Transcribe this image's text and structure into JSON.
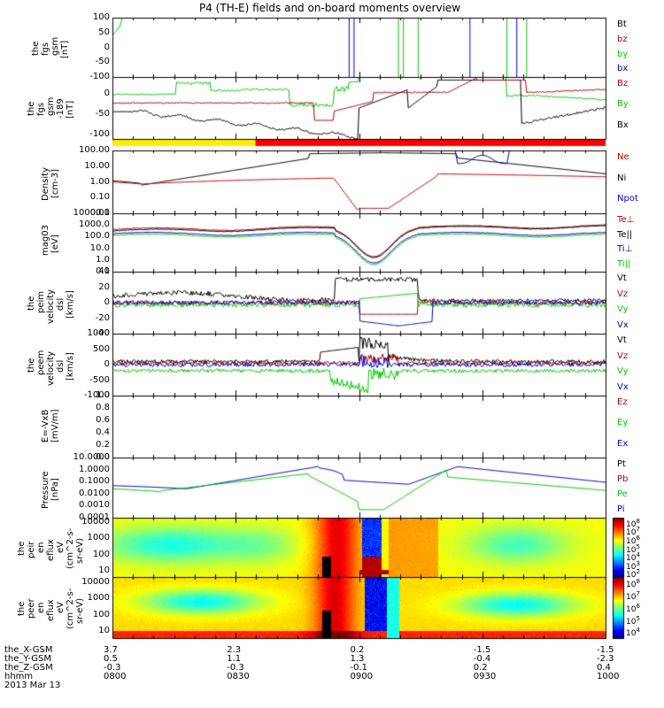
{
  "chart_data": {
    "type": "line",
    "title": "P4 (TH-E) fields and on-board moments overview",
    "date_label": "2013 Mar 13",
    "x_ticks_hhmm": [
      "0800",
      "0830",
      "0900",
      "0930",
      "1000"
    ],
    "x_range": [
      "0800",
      "1000"
    ],
    "ephemeris": {
      "labels": [
        "the_X-GSM",
        "the_Y-GSM",
        "the_Z-GSM",
        "hhmm"
      ],
      "X": [
        "3.7",
        "2.3",
        "0.2",
        "-1.5",
        "-1.5"
      ],
      "Y": [
        "0.5",
        "1.1",
        "1.3",
        "-0.4",
        "-2.3"
      ],
      "Z": [
        "-0.3",
        "-0.3",
        "-0.1",
        "0.2",
        "0.4"
      ]
    },
    "panels": [
      {
        "id": "fgs",
        "ylabel": [
          "the",
          "fgs",
          "gsm",
          "[nT]"
        ],
        "ylim": [
          -100,
          100
        ],
        "y_ticks": [
          "100",
          "50",
          "0",
          "-50",
          "-100"
        ],
        "legend": [
          {
            "name": "Bt",
            "color": "#000000"
          },
          {
            "name": "bz",
            "color": "#b00000"
          },
          {
            "name": "by",
            "color": "#00cc00"
          },
          {
            "name": "bx",
            "color": "#0000cc"
          }
        ]
      },
      {
        "id": "fgs2",
        "ylabel": [
          "the",
          "fgs",
          "gsm",
          "-189",
          "[nT]"
        ],
        "ylim": [
          -125,
          25
        ],
        "y_ticks": [
          "0",
          "-50",
          "-100"
        ],
        "legend": [
          {
            "name": "Bz",
            "color": "#b00000"
          },
          {
            "name": "By",
            "color": "#00cc00"
          },
          {
            "name": "Bx",
            "color": "#000000"
          }
        ]
      },
      {
        "id": "density",
        "ylabel": [
          "Density",
          "[cm-3]"
        ],
        "scale": "log",
        "y_ticks": [
          "100.00",
          "10.00",
          "1.00",
          "0.10",
          "0.01"
        ],
        "legend": [
          {
            "name": "Ne",
            "color": "#b00000"
          },
          {
            "name": "Ni",
            "color": "#000000"
          },
          {
            "name": "Npot",
            "color": "#0000cc"
          }
        ]
      },
      {
        "id": "temp",
        "ylabel": [
          "mag03",
          "[eV]"
        ],
        "scale": "log",
        "y_ticks": [
          "10000.0",
          "1000.0",
          "100.0",
          "10.0",
          "1.0",
          "0.1"
        ],
        "legend": [
          {
            "name": "Te⊥",
            "color": "#b00000"
          },
          {
            "name": "Te||",
            "color": "#000000"
          },
          {
            "name": "Ti⊥",
            "color": "#0000cc"
          },
          {
            "name": "Ti||",
            "color": "#00cc00"
          }
        ]
      },
      {
        "id": "peim",
        "ylabel": [
          "the",
          "peim",
          "velocity",
          "dsl",
          "[km/s]"
        ],
        "ylim": [
          -40,
          40
        ],
        "y_ticks": [
          "40",
          "20",
          "0",
          "-20",
          "-40"
        ],
        "legend": [
          {
            "name": "Vt",
            "color": "#000000"
          },
          {
            "name": "Vz",
            "color": "#b00000"
          },
          {
            "name": "Vy",
            "color": "#00cc00"
          },
          {
            "name": "Vx",
            "color": "#0000cc"
          }
        ]
      },
      {
        "id": "peem",
        "ylabel": [
          "the",
          "peem",
          "velocity",
          "dsl",
          "[km/s]"
        ],
        "ylim": [
          -1000,
          1000
        ],
        "y_ticks": [
          "1000",
          "500",
          "0",
          "-500",
          "-1000"
        ],
        "legend": [
          {
            "name": "Vt",
            "color": "#000000"
          },
          {
            "name": "Vz",
            "color": "#b00000"
          },
          {
            "name": "Vy",
            "color": "#00cc00"
          },
          {
            "name": "Vx",
            "color": "#0000cc"
          }
        ]
      },
      {
        "id": "efield",
        "ylabel": [
          "E=-VxB",
          "[mV/m]"
        ],
        "ylim": [
          0,
          1
        ],
        "y_ticks": [
          "1.0",
          "0.8",
          "0.6",
          "0.4",
          "0.2",
          "0.0"
        ],
        "legend": [
          {
            "name": "Ez",
            "color": "#b00000"
          },
          {
            "name": "Ey",
            "color": "#00cc00"
          },
          {
            "name": "Ex",
            "color": "#0000cc"
          }
        ]
      },
      {
        "id": "pressure",
        "ylabel": [
          "Pressure",
          "[nPa]"
        ],
        "scale": "log",
        "y_ticks": [
          "10.0000",
          "1.0000",
          "0.1000",
          "0.0100",
          "0.0010",
          "0.0001"
        ],
        "legend": [
          {
            "name": "Pt",
            "color": "#000000"
          },
          {
            "name": "Pb",
            "color": "#b00000"
          },
          {
            "name": "Pe",
            "color": "#00cc00"
          },
          {
            "name": "Pi",
            "color": "#0000cc"
          }
        ]
      },
      {
        "id": "peir",
        "type": "heatmap",
        "ylabel": [
          "the",
          "peir",
          "en",
          "eflux",
          "eV",
          "(cm^2-s-",
          "sr-eV)"
        ],
        "scale": "log",
        "y_ticks": [
          "10000",
          "1000",
          "100",
          "10"
        ],
        "colorbar_ticks": [
          "10^8",
          "10^7",
          "10^6",
          "10^5",
          "10^4",
          "10^3",
          "10^2"
        ]
      },
      {
        "id": "peer",
        "type": "heatmap",
        "ylabel": [
          "the",
          "peer",
          "en",
          "eflux",
          "eV",
          "(cm^2-s-",
          "sr-eV)"
        ],
        "scale": "log",
        "y_ticks": [
          "10000",
          "1000",
          "100",
          "10"
        ],
        "colorbar_ticks": [
          "10^8",
          "10^7",
          "10^6",
          "10^5",
          "10^4"
        ]
      }
    ]
  }
}
